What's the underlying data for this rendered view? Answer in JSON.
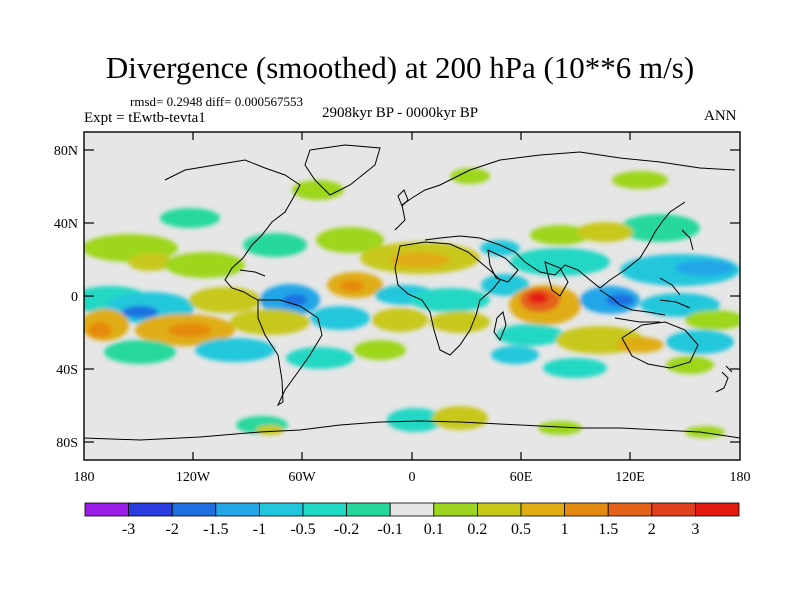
{
  "title": "Divergence (smoothed) at 200 hPa (10**6 m/s)",
  "stats": "rmsd= 0.2948 diff= 0.000567553",
  "experiment": "Expt = tEwtb-tevta1",
  "period": "2908kyr BP - 0000kyr BP",
  "season": "ANN",
  "lat_labels": [
    "80N",
    "40N",
    "0",
    "40S",
    "80S"
  ],
  "lon_labels": [
    "180",
    "120W",
    "60W",
    "0",
    "60E",
    "120E",
    "180"
  ],
  "colorbar": {
    "labels": [
      "-3",
      "-2",
      "-1.5",
      "-1",
      "-0.5",
      "-0.2",
      "-0.1",
      "0.1",
      "0.2",
      "0.5",
      "1",
      "1.5",
      "2",
      "3"
    ],
    "colors": [
      "#9a1de8",
      "#2a3ce0",
      "#1f6fe0",
      "#23a6e8",
      "#22c7dc",
      "#20d8c4",
      "#27d89e",
      "#e6e6e6",
      "#9ed61f",
      "#c8c81a",
      "#e0ad12",
      "#e58a10",
      "#e4621a",
      "#e0401c",
      "#e41b12"
    ]
  },
  "palette": {
    "background": "#e6e6e6",
    "frame": "#000000"
  }
}
